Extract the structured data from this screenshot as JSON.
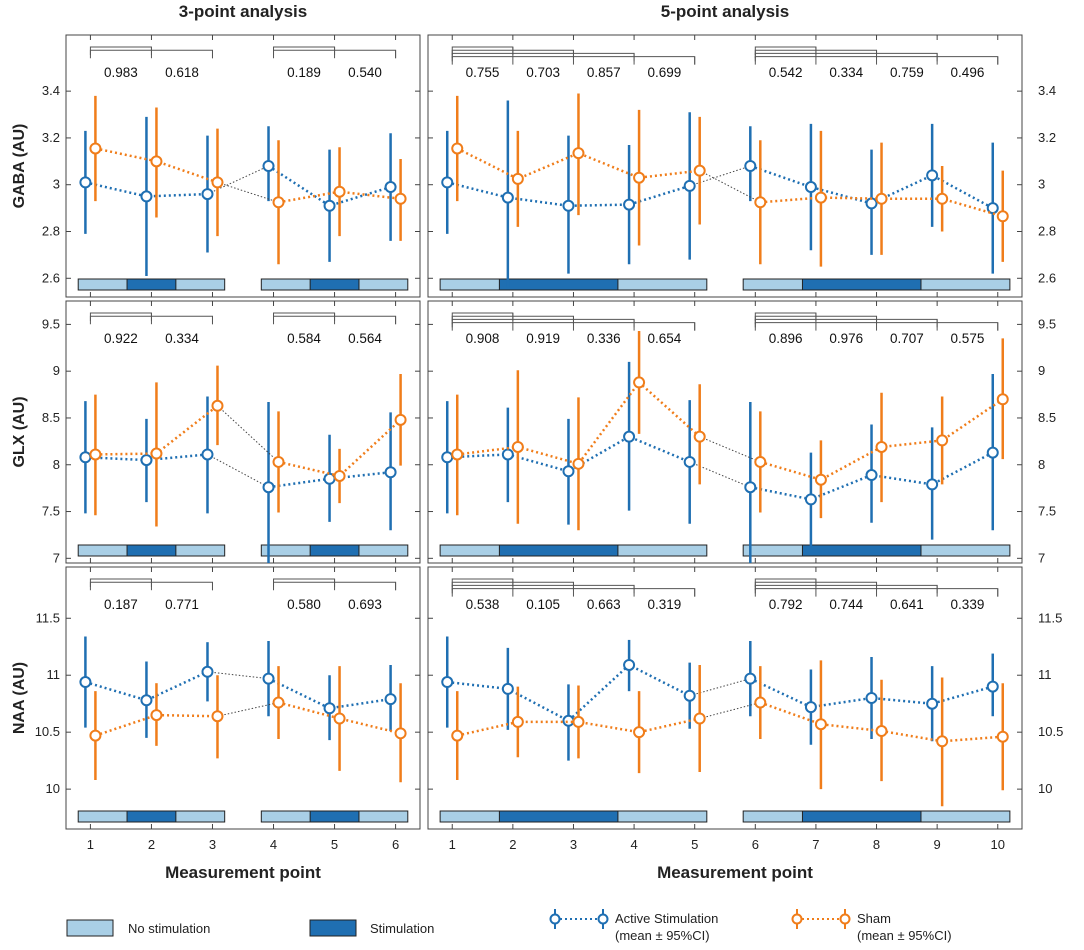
{
  "colors": {
    "active": "#1f6fb2",
    "sham": "#f07d1a",
    "no_stim": "#a9cfe6",
    "stim": "#1f6fb2",
    "connector": "#555555",
    "axis": "#222222",
    "grid_text": "#222222"
  },
  "column_titles": [
    "3-point analysis",
    "5-point analysis"
  ],
  "xlabel": "Measurement point",
  "legend": {
    "no_stimulation": "No stimulation",
    "stimulation": "Stimulation",
    "active_line1": "Active Stimulation",
    "active_line2": "(mean ± 95%CI)",
    "sham_line1": "Sham",
    "sham_line2": "(mean ± 95%CI)"
  },
  "chart_data": [
    {
      "type": "line",
      "panel": "GABA 3-point",
      "ylabel": "GABA (AU)",
      "ylim": [
        2.52,
        3.64
      ],
      "yticks": [
        2.6,
        2.8,
        3.0,
        3.2,
        3.4
      ],
      "ytick_labels": [
        "2.6",
        "2.8",
        "3",
        "3.2",
        "3.4"
      ],
      "x": [
        1,
        2,
        3,
        4,
        5,
        6
      ],
      "xlim": [
        0.6,
        6.4
      ],
      "xtick_labels": [
        "1",
        "2",
        "3",
        "4",
        "5",
        "6"
      ],
      "groups": [
        [
          1,
          2,
          3
        ],
        [
          4,
          5,
          6
        ]
      ],
      "series": [
        {
          "name": "Active Stimulation",
          "values": [
            3.01,
            2.95,
            2.96,
            3.08,
            2.91,
            2.99
          ],
          "lower": [
            2.79,
            2.61,
            2.71,
            2.93,
            2.67,
            2.76
          ],
          "upper": [
            3.23,
            3.29,
            3.21,
            3.25,
            3.15,
            3.22
          ]
        },
        {
          "name": "Sham",
          "values": [
            3.155,
            3.1,
            3.01,
            2.925,
            2.97,
            2.94
          ],
          "lower": [
            2.93,
            2.86,
            2.78,
            2.66,
            2.78,
            2.76
          ],
          "upper": [
            3.38,
            3.33,
            3.24,
            3.19,
            3.16,
            3.11
          ]
        }
      ],
      "pvalues": [
        [
          "0.983",
          "0.618"
        ],
        [
          "0.189",
          "0.540"
        ]
      ],
      "stim_bar": [
        {
          "start": 1,
          "len": 1
        },
        {
          "start": 1,
          "len": 1
        }
      ]
    },
    {
      "type": "line",
      "panel": "GABA 5-point",
      "ylim": [
        2.52,
        3.64
      ],
      "yticks": [
        2.6,
        2.8,
        3.0,
        3.2,
        3.4
      ],
      "ytick_labels": [
        "2.6",
        "2.8",
        "3",
        "3.2",
        "3.4"
      ],
      "x": [
        1,
        2,
        3,
        4,
        5,
        6,
        7,
        8,
        9,
        10
      ],
      "xlim": [
        0.6,
        10.4
      ],
      "xtick_labels": [
        "1",
        "2",
        "3",
        "4",
        "5",
        "6",
        "7",
        "8",
        "9",
        "10"
      ],
      "groups": [
        [
          1,
          2,
          3,
          4,
          5
        ],
        [
          6,
          7,
          8,
          9,
          10
        ]
      ],
      "series": [
        {
          "name": "Active Stimulation",
          "values": [
            3.01,
            2.945,
            2.91,
            2.915,
            2.995,
            3.08,
            2.99,
            2.92,
            3.04,
            2.9
          ],
          "lower": [
            2.79,
            2.56,
            2.62,
            2.66,
            2.68,
            2.93,
            2.72,
            2.7,
            2.82,
            2.62
          ],
          "upper": [
            3.23,
            3.36,
            3.21,
            3.17,
            3.31,
            3.25,
            3.26,
            3.15,
            3.26,
            3.18
          ]
        },
        {
          "name": "Sham",
          "values": [
            3.155,
            3.025,
            3.135,
            3.03,
            3.06,
            2.925,
            2.945,
            2.94,
            2.94,
            2.865
          ],
          "lower": [
            2.93,
            2.82,
            2.87,
            2.74,
            2.83,
            2.66,
            2.65,
            2.7,
            2.8,
            2.67
          ],
          "upper": [
            3.38,
            3.23,
            3.39,
            3.32,
            3.29,
            3.19,
            3.23,
            3.18,
            3.08,
            3.06
          ]
        }
      ],
      "pvalues": [
        [
          "0.755",
          "0.703",
          "0.857",
          "0.699"
        ],
        [
          "0.542",
          "0.334",
          "0.759",
          "0.496"
        ]
      ],
      "stim_bar": [
        {
          "start": 1,
          "len": 2
        },
        {
          "start": 1,
          "len": 2
        }
      ]
    },
    {
      "type": "line",
      "panel": "GLX 3-point",
      "ylabel": "GLX (AU)",
      "ylim": [
        6.95,
        9.75
      ],
      "yticks": [
        7.0,
        7.5,
        8.0,
        8.5,
        9.0,
        9.5
      ],
      "ytick_labels": [
        "7",
        "7.5",
        "8",
        "8.5",
        "9",
        "9.5"
      ],
      "x": [
        1,
        2,
        3,
        4,
        5,
        6
      ],
      "xlim": [
        0.6,
        6.4
      ],
      "xtick_labels": [
        "1",
        "2",
        "3",
        "4",
        "5",
        "6"
      ],
      "groups": [
        [
          1,
          2,
          3
        ],
        [
          4,
          5,
          6
        ]
      ],
      "series": [
        {
          "name": "Active Stimulation",
          "values": [
            8.08,
            8.05,
            8.11,
            7.76,
            7.85,
            7.92
          ],
          "lower": [
            7.48,
            7.6,
            7.48,
            6.95,
            7.39,
            7.3
          ],
          "upper": [
            8.68,
            8.49,
            8.73,
            8.67,
            8.32,
            8.56
          ]
        },
        {
          "name": "Sham",
          "values": [
            8.11,
            8.12,
            8.63,
            8.03,
            7.88,
            8.48
          ],
          "lower": [
            7.46,
            7.34,
            8.21,
            7.49,
            7.59,
            7.99
          ],
          "upper": [
            8.75,
            8.88,
            9.06,
            8.57,
            8.17,
            8.97
          ]
        }
      ],
      "pvalues": [
        [
          "0.922",
          "0.334"
        ],
        [
          "0.584",
          "0.564"
        ]
      ],
      "stim_bar": [
        {
          "start": 1,
          "len": 1
        },
        {
          "start": 1,
          "len": 1
        }
      ]
    },
    {
      "type": "line",
      "panel": "GLX 5-point",
      "ylim": [
        6.95,
        9.75
      ],
      "yticks": [
        7.0,
        7.5,
        8.0,
        8.5,
        9.0,
        9.5
      ],
      "ytick_labels": [
        "7",
        "7.5",
        "8",
        "8.5",
        "9",
        "9.5"
      ],
      "x": [
        1,
        2,
        3,
        4,
        5,
        6,
        7,
        8,
        9,
        10
      ],
      "xlim": [
        0.6,
        10.4
      ],
      "xtick_labels": [
        "1",
        "2",
        "3",
        "4",
        "5",
        "6",
        "7",
        "8",
        "9",
        "10"
      ],
      "groups": [
        [
          1,
          2,
          3,
          4,
          5
        ],
        [
          6,
          7,
          8,
          9,
          10
        ]
      ],
      "series": [
        {
          "name": "Active Stimulation",
          "values": [
            8.08,
            8.11,
            7.93,
            8.3,
            8.03,
            7.76,
            7.63,
            7.89,
            7.79,
            8.13
          ],
          "lower": [
            7.48,
            7.6,
            7.36,
            7.51,
            7.37,
            6.95,
            7.13,
            7.38,
            7.2,
            7.3
          ],
          "upper": [
            8.68,
            8.61,
            8.49,
            9.1,
            8.69,
            8.67,
            8.13,
            8.43,
            8.4,
            8.97
          ]
        },
        {
          "name": "Sham",
          "values": [
            8.11,
            8.19,
            8.01,
            8.88,
            8.3,
            8.03,
            7.84,
            8.19,
            8.26,
            8.7
          ],
          "lower": [
            7.46,
            7.37,
            7.3,
            8.33,
            7.79,
            7.49,
            7.43,
            7.6,
            7.79,
            8.06
          ],
          "upper": [
            8.75,
            9.01,
            8.72,
            9.43,
            8.86,
            8.57,
            8.26,
            8.77,
            8.73,
            9.35
          ]
        }
      ],
      "pvalues": [
        [
          "0.908",
          "0.919",
          "0.336",
          "0.654"
        ],
        [
          "0.896",
          "0.976",
          "0.707",
          "0.575"
        ]
      ],
      "stim_bar": [
        {
          "start": 1,
          "len": 2
        },
        {
          "start": 1,
          "len": 2
        }
      ]
    },
    {
      "type": "line",
      "panel": "NAA 3-point",
      "ylabel": "NAA (AU)",
      "ylim": [
        9.65,
        11.95
      ],
      "yticks": [
        10.0,
        10.5,
        11.0,
        11.5
      ],
      "ytick_labels": [
        "10",
        "10.5",
        "11",
        "11.5"
      ],
      "x": [
        1,
        2,
        3,
        4,
        5,
        6
      ],
      "xlim": [
        0.6,
        6.4
      ],
      "xtick_labels": [
        "1",
        "2",
        "3",
        "4",
        "5",
        "6"
      ],
      "groups": [
        [
          1,
          2,
          3
        ],
        [
          4,
          5,
          6
        ]
      ],
      "series": [
        {
          "name": "Active Stimulation",
          "values": [
            10.94,
            10.78,
            11.03,
            10.97,
            10.71,
            10.79
          ],
          "lower": [
            10.54,
            10.45,
            10.77,
            10.64,
            10.43,
            10.51
          ],
          "upper": [
            11.34,
            11.12,
            11.29,
            11.3,
            11.0,
            11.09
          ]
        },
        {
          "name": "Sham",
          "values": [
            10.47,
            10.65,
            10.64,
            10.76,
            10.62,
            10.49
          ],
          "lower": [
            10.08,
            10.38,
            10.27,
            10.44,
            10.16,
            10.06
          ],
          "upper": [
            10.86,
            10.93,
            11.0,
            11.08,
            11.08,
            10.93
          ]
        }
      ],
      "pvalues": [
        [
          "0.187",
          "0.771"
        ],
        [
          "0.580",
          "0.693"
        ]
      ],
      "stim_bar": [
        {
          "start": 1,
          "len": 1
        },
        {
          "start": 1,
          "len": 1
        }
      ]
    },
    {
      "type": "line",
      "panel": "NAA 5-point",
      "ylim": [
        9.65,
        11.95
      ],
      "yticks": [
        10.0,
        10.5,
        11.0,
        11.5
      ],
      "ytick_labels": [
        "10",
        "10.5",
        "11",
        "11.5"
      ],
      "x": [
        1,
        2,
        3,
        4,
        5,
        6,
        7,
        8,
        9,
        10
      ],
      "xlim": [
        0.6,
        10.4
      ],
      "xtick_labels": [
        "1",
        "2",
        "3",
        "4",
        "5",
        "6",
        "7",
        "8",
        "9",
        "10"
      ],
      "groups": [
        [
          1,
          2,
          3,
          4,
          5
        ],
        [
          6,
          7,
          8,
          9,
          10
        ]
      ],
      "series": [
        {
          "name": "Active Stimulation",
          "values": [
            10.94,
            10.88,
            10.6,
            11.09,
            10.82,
            10.97,
            10.72,
            10.8,
            10.75,
            10.9
          ],
          "lower": [
            10.54,
            10.52,
            10.25,
            10.86,
            10.53,
            10.64,
            10.39,
            10.44,
            10.42,
            10.64
          ],
          "upper": [
            11.34,
            11.24,
            10.92,
            11.31,
            11.11,
            11.3,
            11.05,
            11.16,
            11.08,
            11.19
          ]
        },
        {
          "name": "Sham",
          "values": [
            10.47,
            10.59,
            10.59,
            10.5,
            10.62,
            10.76,
            10.57,
            10.51,
            10.42,
            10.46
          ],
          "lower": [
            10.08,
            10.28,
            10.27,
            10.14,
            10.15,
            10.44,
            10.0,
            10.07,
            9.85,
            9.99
          ],
          "upper": [
            10.86,
            10.9,
            10.91,
            10.86,
            11.09,
            11.08,
            11.13,
            10.96,
            10.98,
            10.93
          ]
        }
      ],
      "pvalues": [
        [
          "0.538",
          "0.105",
          "0.663",
          "0.319"
        ],
        [
          "0.792",
          "0.744",
          "0.641",
          "0.339"
        ]
      ],
      "stim_bar": [
        {
          "start": 1,
          "len": 2
        },
        {
          "start": 1,
          "len": 2
        }
      ]
    }
  ]
}
